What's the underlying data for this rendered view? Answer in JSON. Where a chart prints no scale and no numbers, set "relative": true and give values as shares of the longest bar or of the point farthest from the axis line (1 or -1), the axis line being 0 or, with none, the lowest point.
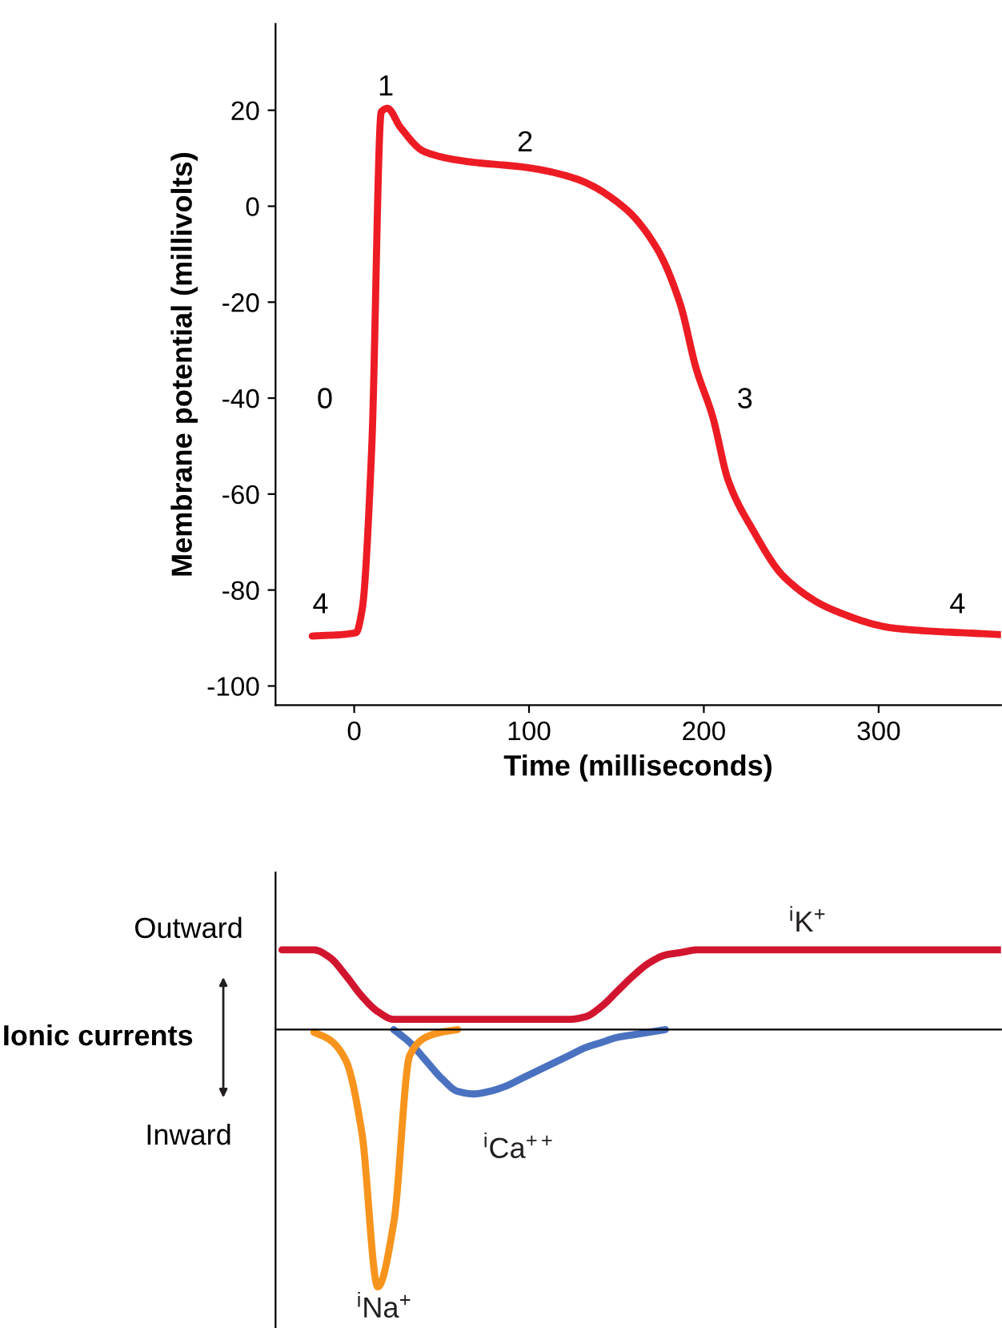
{
  "chart_data": [
    {
      "type": "line",
      "xlabel": "Time (milliseconds)",
      "ylabel": "Membrane potential (millivolts)",
      "x": [
        -24,
        1,
        4.6,
        10,
        15.5,
        19,
        26.5,
        40,
        63,
        100,
        127,
        154.5,
        173,
        186.5,
        195.6,
        205,
        214,
        227.6,
        246,
        273,
        310,
        370
      ],
      "series": [
        {
          "color": "#ed1c24",
          "values": [
            -89.6,
            -88.9,
            -83.9,
            -50.5,
            19.7,
            20.4,
            16.4,
            11.4,
            9.4,
            8,
            5.7,
            -0.3,
            -8.7,
            -20.4,
            -33.8,
            -43.8,
            -57.2,
            -67.2,
            -77.3,
            -84,
            -88,
            -89.3
          ]
        }
      ],
      "xlim": [
        -45,
        370
      ],
      "ylim": [
        -104,
        38
      ],
      "xticks": [
        0,
        100,
        200,
        300
      ],
      "yticks": [
        -100,
        -80,
        -60,
        -40,
        -20,
        0,
        20
      ],
      "annotations": [
        "0",
        "1",
        "2",
        "3",
        "4",
        "4"
      ],
      "grid": false,
      "legend": false,
      "marker": "none",
      "line_style": "solid"
    },
    {
      "type": "line",
      "relative": true,
      "tick_labels": false,
      "categories": [
        null,
        null,
        null,
        null,
        null,
        null,
        null,
        null,
        null,
        null,
        null,
        null,
        null,
        null,
        null,
        null,
        null,
        null,
        null,
        null,
        null,
        null,
        null,
        null,
        null,
        null,
        null,
        null,
        null,
        null,
        null,
        null,
        null,
        null,
        null,
        null,
        null,
        null,
        null,
        null,
        null,
        null,
        null,
        null,
        null,
        null
      ],
      "series": [
        {
          "name": "$^{i}$K$^{+}$",
          "color": "#d2152e",
          "values": [
            0.31,
            0.31,
            0.31,
            0.28,
            0.21,
            0.13,
            0.07,
            0.04,
            0.04,
            0.04,
            0.04,
            0.04,
            0.04,
            0.04,
            0.04,
            0.04,
            0.04,
            0.04,
            0.04,
            0.05,
            0.09,
            0.15,
            0.21,
            0.26,
            0.29,
            0.3,
            0.31,
            0.31,
            0.31,
            0.31,
            0.31,
            0.31,
            0.31,
            0.31,
            0.31,
            0.31,
            0.31,
            0.31,
            0.31,
            0.31,
            0.31,
            0.31,
            0.31,
            0.31,
            0.31,
            0.31
          ]
        },
        {
          "name": "$^{i}$Ca$^{++}$",
          "color": "#4a72c0",
          "values": [
            null,
            null,
            null,
            null,
            null,
            null,
            null,
            0,
            -0.05,
            -0.12,
            -0.19,
            -0.24,
            -0.25,
            -0.24,
            -0.22,
            -0.19,
            -0.16,
            -0.13,
            -0.1,
            -0.07,
            -0.05,
            -0.03,
            -0.02,
            -0.01,
            0,
            null,
            null,
            null,
            null,
            null,
            null,
            null,
            null,
            null,
            null,
            null,
            null,
            null,
            null,
            null,
            null,
            null,
            null,
            null,
            null,
            null
          ]
        },
        {
          "name": "$^{i}$Na$^{+}$",
          "color": "#f7941d",
          "values": [
            null,
            null,
            -0.01,
            -0.04,
            -0.12,
            -0.4,
            -1,
            -0.75,
            -0.1,
            -0.03,
            -0.01,
            0,
            null,
            null,
            null,
            null,
            null,
            null,
            null,
            null,
            null,
            null,
            null,
            null,
            null,
            null,
            null,
            null,
            null,
            null,
            null,
            null,
            null,
            null,
            null,
            null,
            null,
            null,
            null,
            null,
            null,
            null,
            null,
            null,
            null,
            null
          ]
        }
      ],
      "annotations": [
        "Outward",
        "Ionic currents",
        "Inward"
      ],
      "grid": false,
      "legend": false,
      "marker": "none",
      "line_style": "solid"
    }
  ]
}
